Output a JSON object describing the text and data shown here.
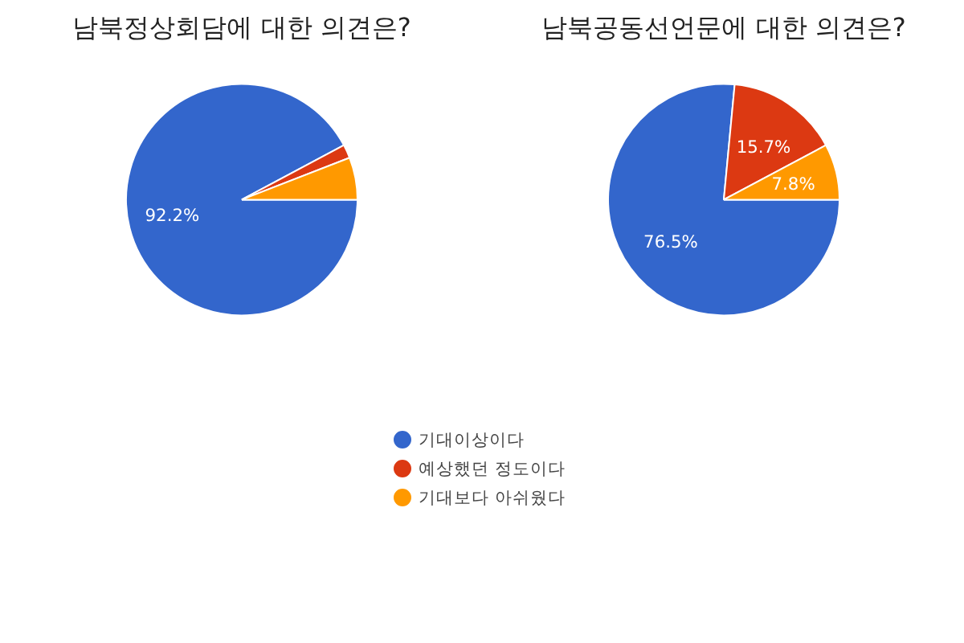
{
  "chart_data": [
    {
      "type": "pie",
      "title": "남북정상회담에 대한 의견은?",
      "categories": [
        "기대이상이다",
        "예상했던 정도이다",
        "기대보다 아쉬웠다"
      ],
      "values": [
        92.2,
        1.9,
        5.9
      ],
      "colors": [
        "#3366cc",
        "#dc3912",
        "#ff9900"
      ],
      "value_labels": [
        "92.2%",
        null,
        null
      ],
      "legend": "bottom"
    },
    {
      "type": "pie",
      "title": "남북공동선언문에 대한 의견은?",
      "categories": [
        null,
        null,
        null
      ],
      "values": [
        76.5,
        15.7,
        7.8
      ],
      "colors": [
        "#3366cc",
        "#dc3912",
        "#ff9900"
      ],
      "value_labels": [
        "76.5%",
        "15.7%",
        "7.8%"
      ]
    }
  ]
}
